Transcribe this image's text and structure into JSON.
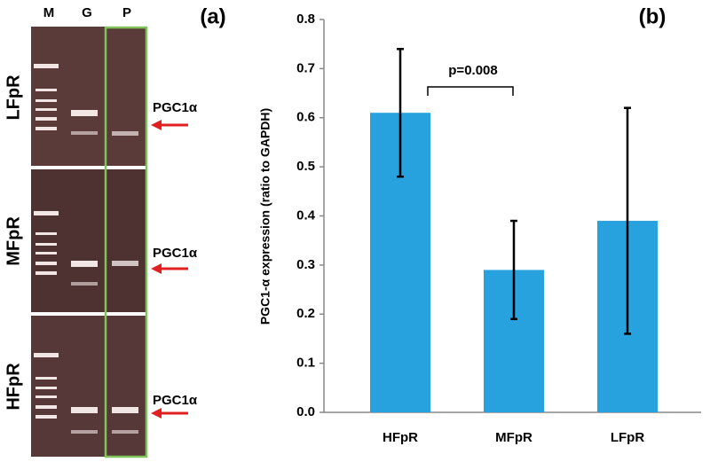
{
  "panel_a": {
    "label": "(a)",
    "lanes": [
      "M",
      "G",
      "P"
    ],
    "rows": [
      "LFpR",
      "MFpR",
      "HFpR"
    ],
    "band_labels": [
      "PGC1α",
      "PGC1α",
      "PGC1α"
    ]
  },
  "chart_data": {
    "type": "bar",
    "panel_label": "(b)",
    "ylabel": "PGC1-α expression (ratio to GAPDH)",
    "categories": [
      "HFpR",
      "MFpR",
      "LFpR"
    ],
    "values": [
      0.61,
      0.29,
      0.39
    ],
    "errors": [
      0.13,
      0.1,
      0.23
    ],
    "color": "#27a2de",
    "ylim": [
      0,
      0.8
    ],
    "yticks": [
      {
        "value": 0,
        "label": "0.0"
      },
      0.1,
      0.2,
      0.3,
      0.4,
      0.5,
      0.6,
      0.7,
      0.8
    ],
    "annotation": "p=0.008",
    "grid": false
  }
}
